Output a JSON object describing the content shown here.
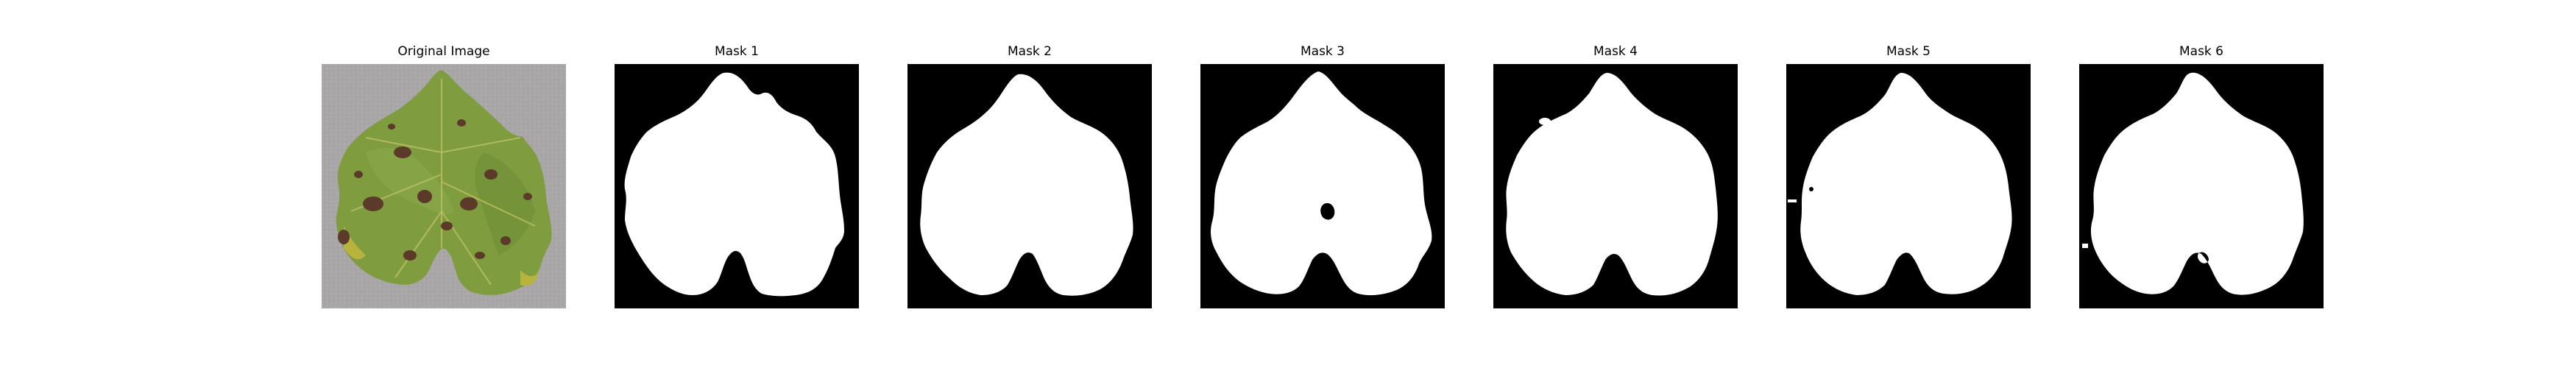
{
  "figure": {
    "panels": [
      {
        "title": "Original Image",
        "kind": "photo"
      },
      {
        "title": "Mask 1",
        "kind": "mask"
      },
      {
        "title": "Mask 2",
        "kind": "mask"
      },
      {
        "title": "Mask 3",
        "kind": "mask"
      },
      {
        "title": "Mask 4",
        "kind": "mask"
      },
      {
        "title": "Mask 5",
        "kind": "mask"
      },
      {
        "title": "Mask 6",
        "kind": "mask"
      }
    ]
  },
  "colors": {
    "mask_background": "#000000",
    "mask_foreground": "#ffffff",
    "photo_background": "#a9a6a7",
    "leaf_green": "#7f9d3f",
    "leaf_dark": "#5a7a2e",
    "lesion_brown": "#5b3a2a",
    "leaf_yellow": "#b8b33c"
  }
}
